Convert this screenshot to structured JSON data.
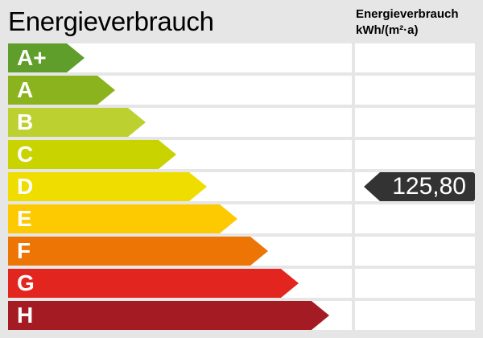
{
  "title": "Energieverbrauch",
  "column_header": {
    "line1": "Energieverbrauch",
    "line2": "kWh/(m²·a)"
  },
  "classes": [
    {
      "label": "A+",
      "color": "#5f9e2a"
    },
    {
      "label": "A",
      "color": "#8bb31d"
    },
    {
      "label": "B",
      "color": "#bcd030"
    },
    {
      "label": "C",
      "color": "#c9d300"
    },
    {
      "label": "D",
      "color": "#f0dd00"
    },
    {
      "label": "E",
      "color": "#fdc900"
    },
    {
      "label": "F",
      "color": "#ec7505"
    },
    {
      "label": "G",
      "color": "#e3251f"
    },
    {
      "label": "H",
      "color": "#a51b23"
    }
  ],
  "indicator": {
    "value": "125,80",
    "class": "D",
    "color": "#333333"
  }
}
